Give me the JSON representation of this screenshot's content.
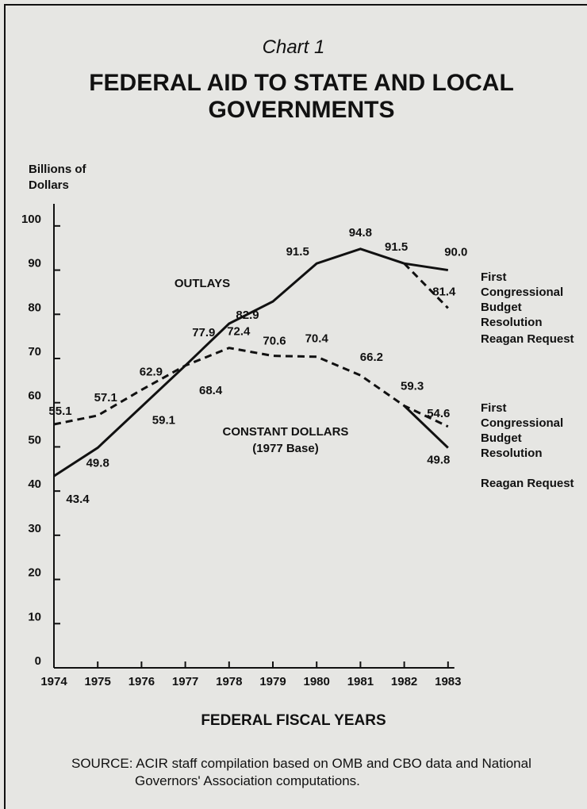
{
  "chart_data": {
    "type": "line",
    "subtitle": "Chart 1",
    "title": "FEDERAL AID TO STATE AND LOCAL GOVERNMENTS",
    "y_label": "Billions of Dollars",
    "x_label": "FEDERAL FISCAL YEARS",
    "source": "SOURCE: ACIR staff compilation based on OMB and CBO data and National Governors' Association computations.",
    "annotations": [
      "OUTLAYS",
      "CONSTANT DOLLARS",
      "(1977 Base)"
    ],
    "categories": [
      "1974",
      "1975",
      "1976",
      "1977",
      "1978",
      "1979",
      "1980",
      "1981",
      "1982",
      "1983"
    ],
    "ylim": [
      0,
      105
    ],
    "yticks": [
      0,
      10,
      20,
      30,
      40,
      50,
      60,
      70,
      80,
      90,
      100
    ],
    "series": [
      {
        "name": "First Congressional Budget Resolution",
        "color": "#111111",
        "dash": false,
        "values": [
          43.4,
          49.8,
          59.1,
          68.4,
          77.9,
          82.9,
          91.5,
          94.8,
          91.5,
          90.0
        ],
        "value_labels": [
          "43.4",
          "49.8",
          "59.1",
          "68.4",
          "77.9",
          "82.9",
          "91.5",
          "94.8",
          "91.5",
          "90.0"
        ]
      },
      {
        "name": "Reagan Request",
        "color": "#111111",
        "dash": true,
        "values": [
          null,
          null,
          null,
          null,
          null,
          null,
          null,
          null,
          91.5,
          81.4
        ],
        "value_labels": [
          null,
          null,
          null,
          null,
          null,
          null,
          null,
          null,
          null,
          "81.4"
        ]
      },
      {
        "name": "First Congressional Budget Resolution",
        "color": "#111111",
        "dash": true,
        "values": [
          55.1,
          57.1,
          62.9,
          68.4,
          72.4,
          70.6,
          70.4,
          66.2,
          59.3,
          54.6
        ],
        "value_labels": [
          "55.1",
          "57.1",
          "62.9",
          null,
          "72.4",
          "70.6",
          "70.4",
          "66.2",
          "59.3",
          "54.6"
        ]
      },
      {
        "name": "Reagan Request",
        "color": "#111111",
        "dash": false,
        "values": [
          null,
          null,
          null,
          null,
          null,
          null,
          null,
          null,
          59.3,
          49.8
        ],
        "value_labels": [
          null,
          null,
          null,
          null,
          null,
          null,
          null,
          null,
          null,
          "49.8"
        ]
      }
    ]
  }
}
